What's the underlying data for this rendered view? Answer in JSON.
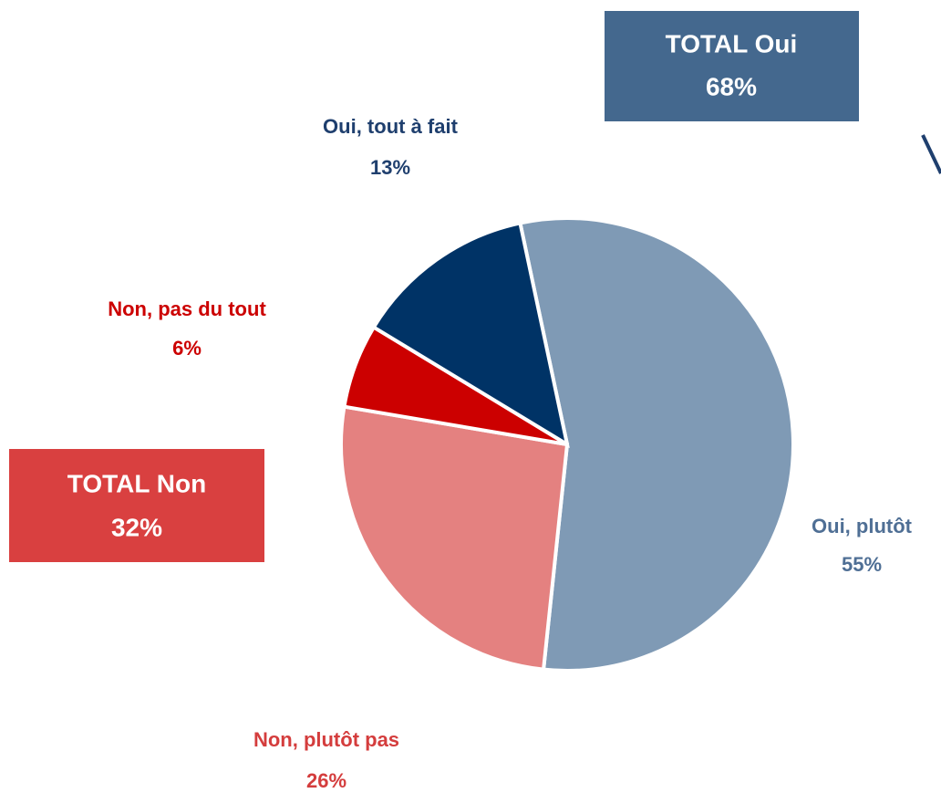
{
  "chart_data": {
    "type": "pie",
    "categories": [
      "Oui, plutôt",
      "Non, plutôt pas",
      "Non, pas du tout",
      "Oui, tout à fait"
    ],
    "values": [
      55,
      26,
      6,
      13
    ],
    "value_labels": [
      "55%",
      "26%",
      "6%",
      "13%"
    ],
    "colors": [
      "#7f9ab5",
      "#e48180",
      "#cc0000",
      "#003366"
    ],
    "label_colors": [
      "#4f6f95",
      "#d43d3d",
      "#cc0000",
      "#1f3f6e"
    ],
    "annotations": [
      {
        "text": "TOTAL Oui",
        "value_label": "68%",
        "color": "#44688e"
      },
      {
        "text": "TOTAL Non",
        "value_label": "32%",
        "color": "#d94040"
      }
    ]
  }
}
